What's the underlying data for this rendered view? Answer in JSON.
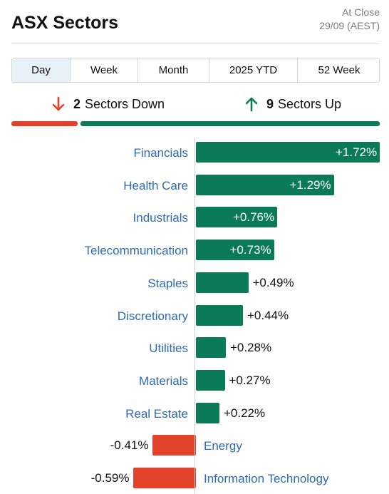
{
  "header": {
    "title": "ASX Sectors",
    "close_line1": "At Close",
    "close_line2": "29/09 (AEST)"
  },
  "tabs": [
    {
      "label": "Day",
      "active": true
    },
    {
      "label": "Week",
      "active": false
    },
    {
      "label": "Month",
      "active": false
    },
    {
      "label": "2025 YTD",
      "active": false
    },
    {
      "label": "52 Week",
      "active": false
    }
  ],
  "summary": {
    "down_count": "2",
    "down_label": "Sectors Down",
    "up_count": "9",
    "up_label": "Sectors Up"
  },
  "colors": {
    "up": "#0b7a56",
    "down": "#e2412a",
    "label": "#2e6bb4"
  },
  "chart_data": {
    "type": "bar",
    "orientation": "horizontal",
    "categories": [
      "Financials",
      "Health Care",
      "Industrials",
      "Telecommunication",
      "Staples",
      "Discretionary",
      "Utilities",
      "Materials",
      "Real Estate",
      "Energy",
      "Information Technology"
    ],
    "values": [
      1.72,
      1.29,
      0.76,
      0.73,
      0.49,
      0.44,
      0.28,
      0.27,
      0.22,
      -0.41,
      -0.59
    ],
    "value_labels": [
      "+1.72%",
      "+1.29%",
      "+0.76%",
      "+0.73%",
      "+0.49%",
      "+0.44%",
      "+0.28%",
      "+0.27%",
      "+0.22%",
      "-0.41%",
      "-0.59%"
    ],
    "unit": "%"
  }
}
